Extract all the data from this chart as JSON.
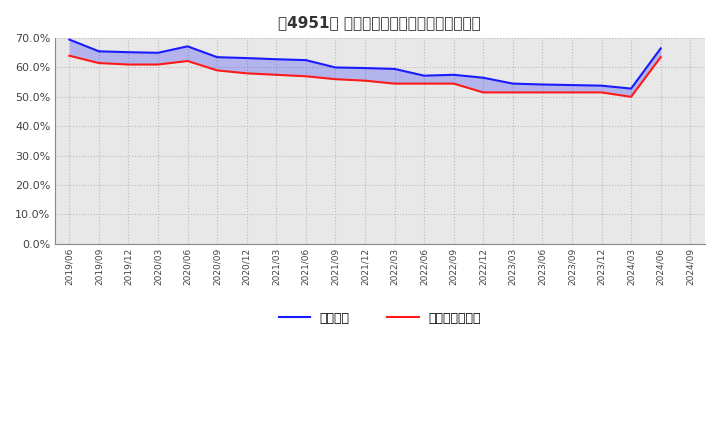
{
  "title": "［4951］ 固定比率、固定長期適合率の推移",
  "fixed_ratio": {
    "dates": [
      "2019/06",
      "2019/09",
      "2019/12",
      "2020/03",
      "2020/06",
      "2020/09",
      "2020/12",
      "2021/03",
      "2021/06",
      "2021/09",
      "2021/12",
      "2022/03",
      "2022/06",
      "2022/09",
      "2022/12",
      "2023/03",
      "2023/06",
      "2023/09",
      "2023/12",
      "2024/03",
      "2024/06",
      "2024/09"
    ],
    "values": [
      69.5,
      65.5,
      65.2,
      65.0,
      67.2,
      63.5,
      63.2,
      62.8,
      62.5,
      60.0,
      59.8,
      59.5,
      57.2,
      57.5,
      56.5,
      54.5,
      54.2,
      54.0,
      53.8,
      52.8,
      66.5,
      null
    ],
    "color": "#1a1aff"
  },
  "long_term_ratio": {
    "dates": [
      "2019/06",
      "2019/09",
      "2019/12",
      "2020/03",
      "2020/06",
      "2020/09",
      "2020/12",
      "2021/03",
      "2021/06",
      "2021/09",
      "2021/12",
      "2022/03",
      "2022/06",
      "2022/09",
      "2022/12",
      "2023/03",
      "2023/06",
      "2023/09",
      "2023/12",
      "2024/03",
      "2024/06",
      "2024/09"
    ],
    "values": [
      64.0,
      61.5,
      61.0,
      61.0,
      62.2,
      59.0,
      58.0,
      57.5,
      57.0,
      56.0,
      55.5,
      54.5,
      54.5,
      54.5,
      51.5,
      51.5,
      51.5,
      51.5,
      51.5,
      50.0,
      63.5,
      null
    ],
    "color": "#ff1a1a"
  },
  "ylim": [
    0,
    70
  ],
  "yticks": [
    0,
    10,
    20,
    30,
    40,
    50,
    60,
    70
  ],
  "ytick_labels": [
    "0.0%",
    "10.0%",
    "20.0%",
    "30.0%",
    "40.0%",
    "50.0%",
    "60.0%",
    "70.0%"
  ],
  "background_color": "#ffffff",
  "plot_bg_color": "#e8e8e8",
  "grid_color": "#bbbbbb",
  "legend_labels": [
    "固定比率",
    "固定長期適合率"
  ]
}
